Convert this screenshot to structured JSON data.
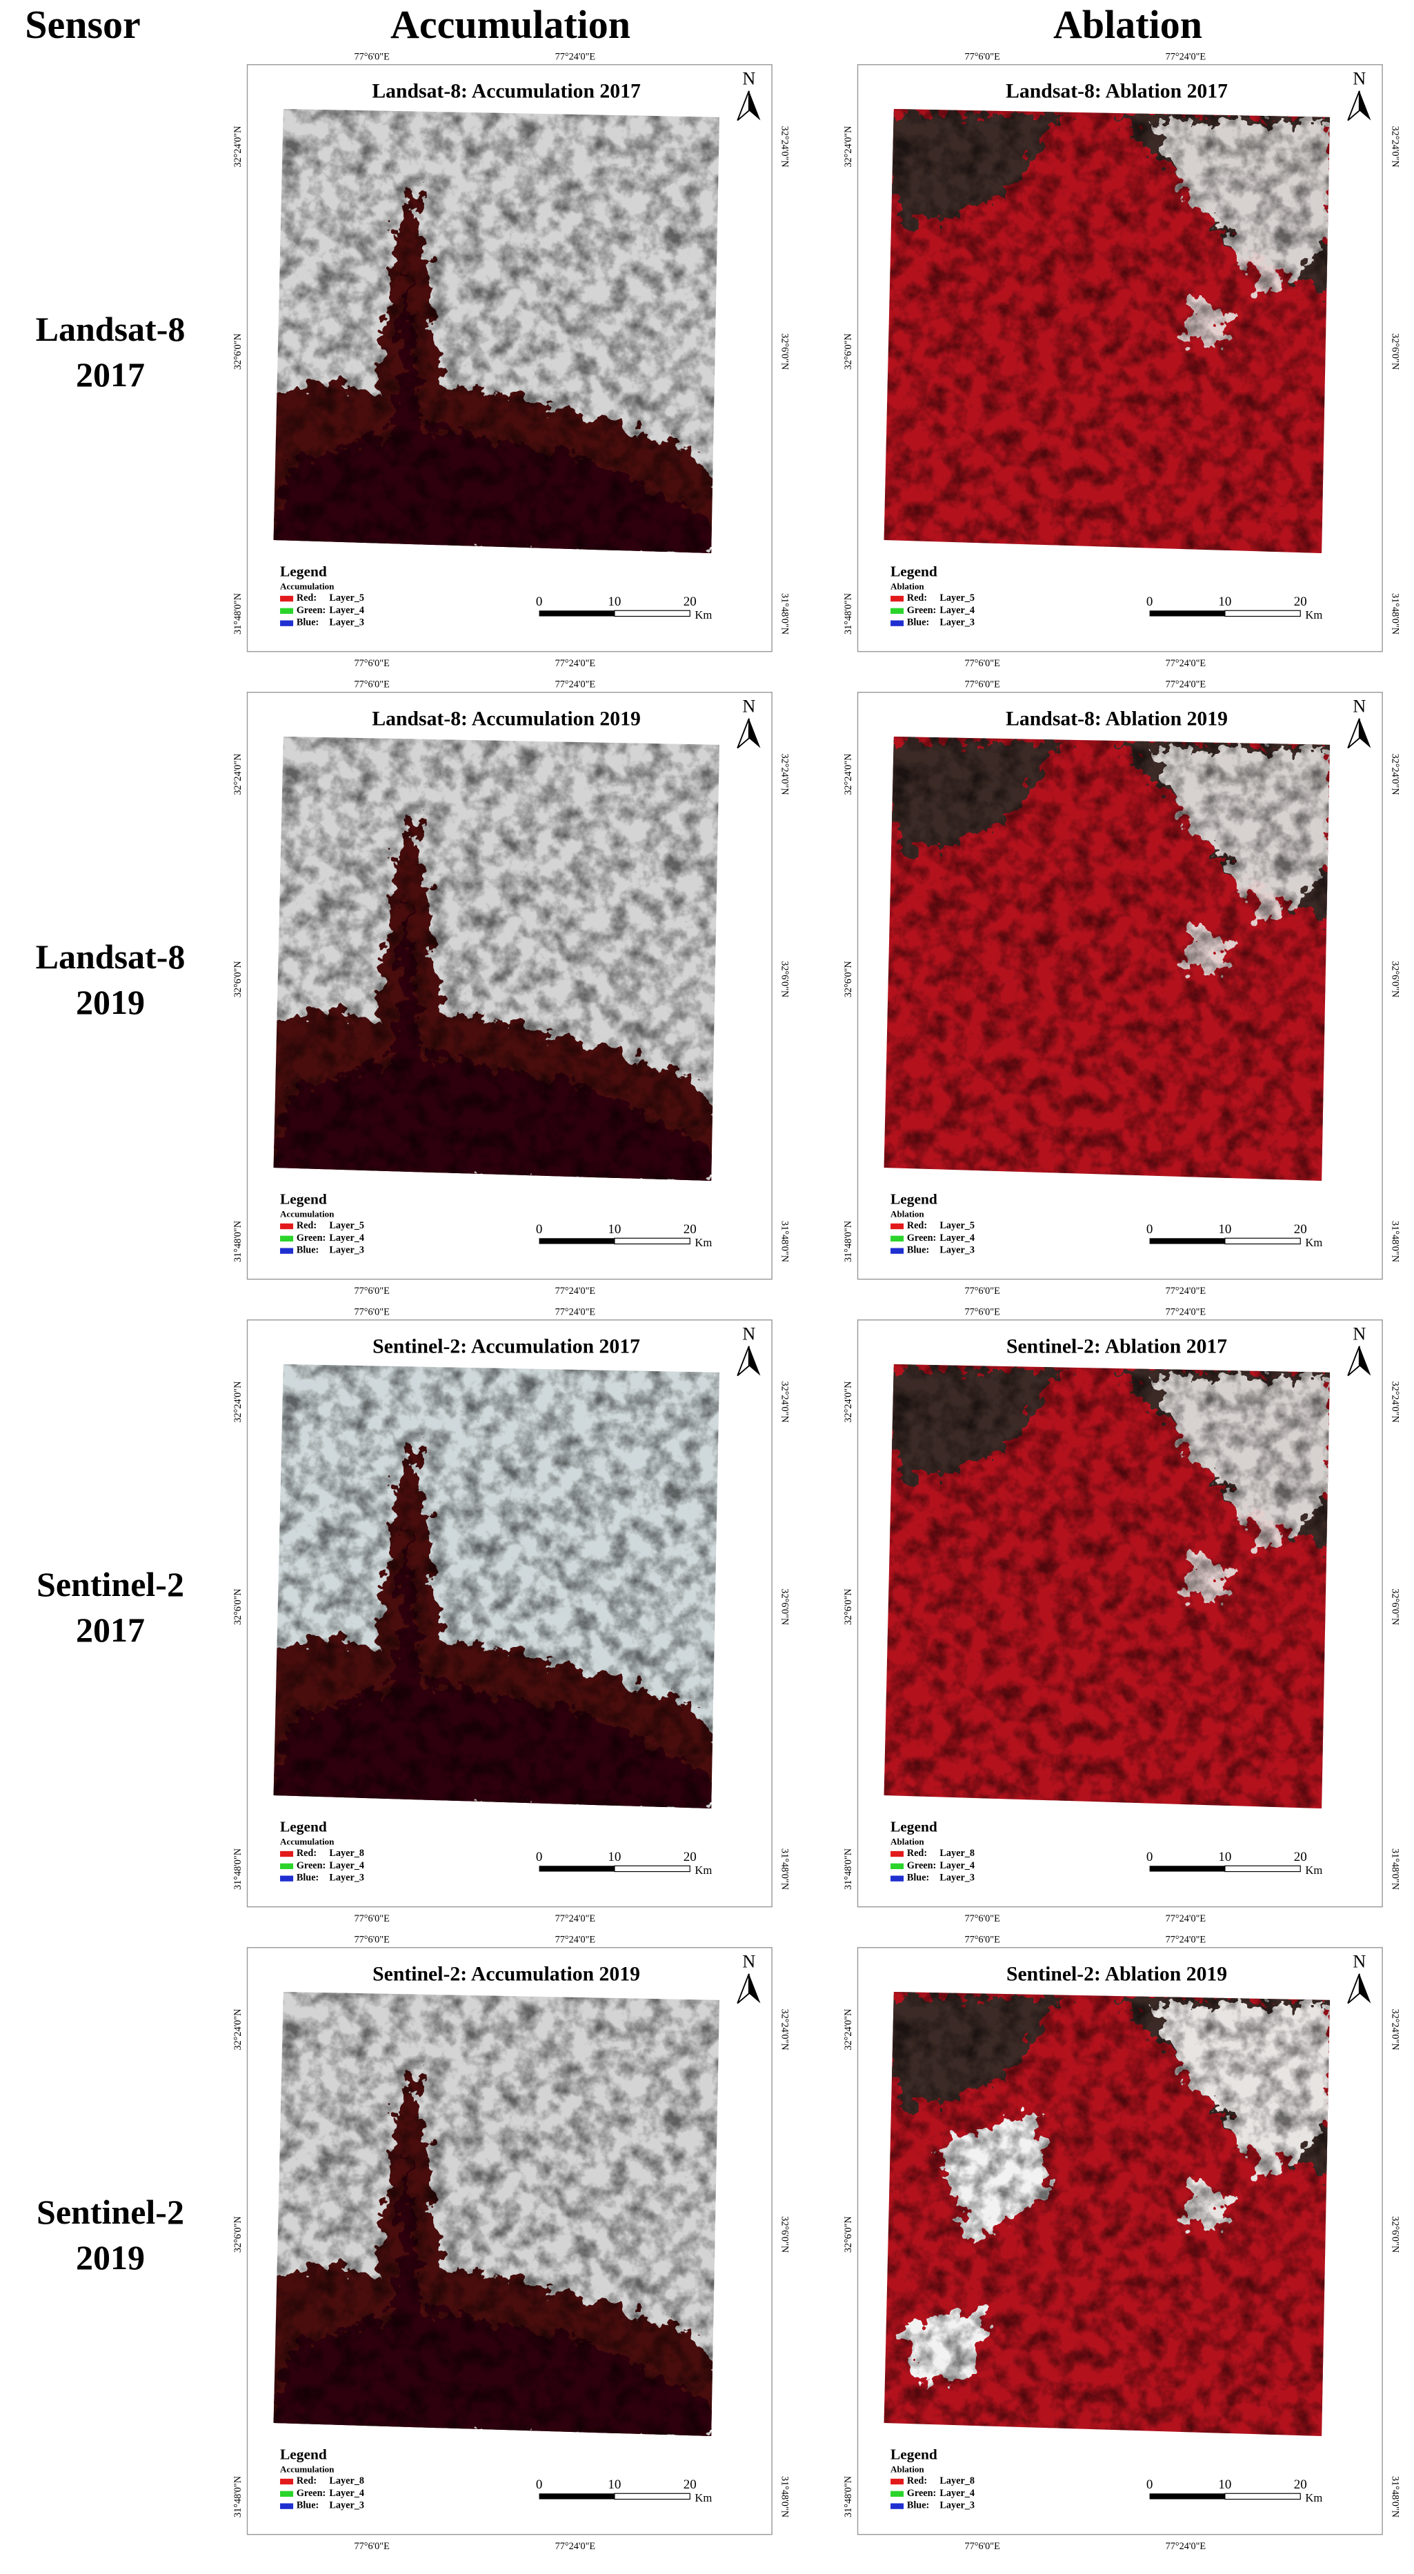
{
  "header": {
    "sensor": "Sensor",
    "accumulation": "Accumulation",
    "ablation": "Ablation"
  },
  "common": {
    "longitudes": [
      "77°6'0\"E",
      "77°24'0\"E"
    ],
    "latitudes": [
      "32°24'0\"N",
      "32°6'0\"N",
      "31°48'0\"N"
    ],
    "north": "N",
    "legend": "Legend",
    "scale": [
      0,
      10,
      20
    ],
    "scale_unit": "Km",
    "bands": [
      "Red:",
      "Green:",
      "Blue:"
    ]
  },
  "rows": [
    {
      "sensor": "Landsat-8",
      "year": "2017",
      "panels": [
        {
          "title": "Landsat-8: Accumulation 2017",
          "legend_subtitle": "Accumulation",
          "layers": [
            "Layer_5",
            "Layer_4",
            "Layer_3"
          ]
        },
        {
          "title": "Landsat-8: Ablation 2017",
          "legend_subtitle": "Ablation",
          "layers": [
            "Layer_5",
            "Layer_4",
            "Layer_3"
          ]
        }
      ]
    },
    {
      "sensor": "Landsat-8",
      "year": "2019",
      "panels": [
        {
          "title": "Landsat-8: Accumulation 2019",
          "legend_subtitle": "Accumulation",
          "layers": [
            "Layer_5",
            "Layer_4",
            "Layer_3"
          ]
        },
        {
          "title": "Landsat-8: Ablation 2019",
          "legend_subtitle": "Ablation",
          "layers": [
            "Layer_5",
            "Layer_4",
            "Layer_3"
          ]
        }
      ]
    },
    {
      "sensor": "Sentinel-2",
      "year": "2017",
      "panels": [
        {
          "title": "Sentinel-2: Accumulation 2017",
          "legend_subtitle": "Accumulation",
          "layers": [
            "Layer_8",
            "Layer_4",
            "Layer_3"
          ]
        },
        {
          "title": "Sentinel-2: Ablation 2017",
          "legend_subtitle": "Ablation",
          "layers": [
            "Layer_8",
            "Layer_4",
            "Layer_3"
          ]
        }
      ]
    },
    {
      "sensor": "Sentinel-2",
      "year": "2019",
      "panels": [
        {
          "title": "Sentinel-2: Accumulation 2019",
          "legend_subtitle": "Accumulation",
          "layers": [
            "Layer_8",
            "Layer_4",
            "Layer_3"
          ]
        },
        {
          "title": "Sentinel-2: Ablation 2019",
          "legend_subtitle": "Ablation",
          "layers": [
            "Layer_8",
            "Layer_4",
            "Layer_3"
          ]
        }
      ]
    }
  ]
}
